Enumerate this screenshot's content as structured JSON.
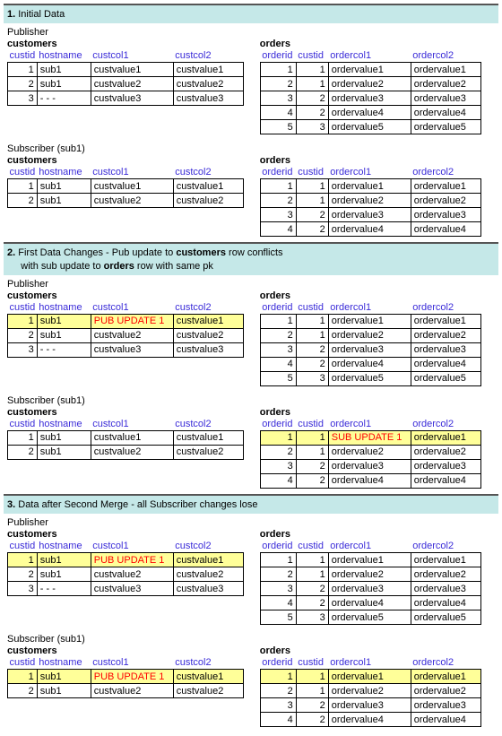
{
  "colors": {
    "header_bg": "#c5e8e8",
    "header_border": "#555555",
    "column_header_text": "#3a2bd8",
    "highlight_bg": "#ffff99",
    "update_text": "#ff0000",
    "cell_border": "#000000"
  },
  "layout": {
    "customers_col_widths": [
      28,
      60,
      92,
      78
    ],
    "orders_col_widths": [
      40,
      36,
      92,
      78
    ]
  },
  "sections": [
    {
      "num": "1.",
      "title": "Initial Data",
      "subtitle": "",
      "blocks": [
        {
          "role": "Publisher",
          "customers": {
            "title": "customers",
            "columns": [
              "custid",
              "hostname",
              "custcol1",
              "custcol2"
            ],
            "rows": [
              {
                "cells": [
                  "1",
                  "sub1",
                  "custvalue1",
                  "custvalue1"
                ]
              },
              {
                "cells": [
                  "2",
                  "sub1",
                  "custvalue2",
                  "custvalue2"
                ]
              },
              {
                "cells": [
                  "3",
                  "- - -",
                  "custvalue3",
                  "custvalue3"
                ]
              }
            ]
          },
          "orders": {
            "title": "orders",
            "columns": [
              "orderid",
              "custid",
              "ordercol1",
              "ordercol2"
            ],
            "rows": [
              {
                "cells": [
                  "1",
                  "1",
                  "ordervalue1",
                  "ordervalue1"
                ]
              },
              {
                "cells": [
                  "2",
                  "1",
                  "ordervalue2",
                  "ordervalue2"
                ]
              },
              {
                "cells": [
                  "3",
                  "2",
                  "ordervalue3",
                  "ordervalue3"
                ]
              },
              {
                "cells": [
                  "4",
                  "2",
                  "ordervalue4",
                  "ordervalue4"
                ]
              },
              {
                "cells": [
                  "5",
                  "3",
                  "ordervalue5",
                  "ordervalue5"
                ]
              }
            ]
          }
        },
        {
          "role": "Subscriber (sub1)",
          "customers": {
            "title": "customers",
            "columns": [
              "custid",
              "hostname",
              "custcol1",
              "custcol2"
            ],
            "rows": [
              {
                "cells": [
                  "1",
                  "sub1",
                  "custvalue1",
                  "custvalue1"
                ]
              },
              {
                "cells": [
                  "2",
                  "sub1",
                  "custvalue2",
                  "custvalue2"
                ]
              }
            ]
          },
          "orders": {
            "title": "orders",
            "columns": [
              "orderid",
              "custid",
              "ordercol1",
              "ordercol2"
            ],
            "rows": [
              {
                "cells": [
                  "1",
                  "1",
                  "ordervalue1",
                  "ordervalue1"
                ]
              },
              {
                "cells": [
                  "2",
                  "1",
                  "ordervalue2",
                  "ordervalue2"
                ]
              },
              {
                "cells": [
                  "3",
                  "2",
                  "ordervalue3",
                  "ordervalue3"
                ]
              },
              {
                "cells": [
                  "4",
                  "2",
                  "ordervalue4",
                  "ordervalue4"
                ]
              }
            ]
          }
        }
      ]
    },
    {
      "num": "2.",
      "title": "First Data Changes - Pub update to <b>customers</b> row conflicts",
      "subtitle": "with sub update to <b>orders</b> row with same pk",
      "blocks": [
        {
          "role": "Publisher",
          "customers": {
            "title": "customers",
            "columns": [
              "custid",
              "hostname",
              "custcol1",
              "custcol2"
            ],
            "rows": [
              {
                "cells": [
                  "1",
                  "sub1",
                  "PUB UPDATE 1",
                  "custvalue1"
                ],
                "highlight": true,
                "update_col": 2
              },
              {
                "cells": [
                  "2",
                  "sub1",
                  "custvalue2",
                  "custvalue2"
                ]
              },
              {
                "cells": [
                  "3",
                  "- - -",
                  "custvalue3",
                  "custvalue3"
                ]
              }
            ]
          },
          "orders": {
            "title": "orders",
            "columns": [
              "orderid",
              "custid",
              "ordercol1",
              "ordercol2"
            ],
            "rows": [
              {
                "cells": [
                  "1",
                  "1",
                  "ordervalue1",
                  "ordervalue1"
                ]
              },
              {
                "cells": [
                  "2",
                  "1",
                  "ordervalue2",
                  "ordervalue2"
                ]
              },
              {
                "cells": [
                  "3",
                  "2",
                  "ordervalue3",
                  "ordervalue3"
                ]
              },
              {
                "cells": [
                  "4",
                  "2",
                  "ordervalue4",
                  "ordervalue4"
                ]
              },
              {
                "cells": [
                  "5",
                  "3",
                  "ordervalue5",
                  "ordervalue5"
                ]
              }
            ]
          }
        },
        {
          "role": "Subscriber (sub1)",
          "customers": {
            "title": "customers",
            "columns": [
              "custid",
              "hostname",
              "custcol1",
              "custcol2"
            ],
            "rows": [
              {
                "cells": [
                  "1",
                  "sub1",
                  "custvalue1",
                  "custvalue1"
                ]
              },
              {
                "cells": [
                  "2",
                  "sub1",
                  "custvalue2",
                  "custvalue2"
                ]
              }
            ]
          },
          "orders": {
            "title": "orders",
            "columns": [
              "orderid",
              "custid",
              "ordercol1",
              "ordercol2"
            ],
            "rows": [
              {
                "cells": [
                  "1",
                  "1",
                  "SUB UPDATE 1",
                  "ordervalue1"
                ],
                "highlight": true,
                "update_col": 2
              },
              {
                "cells": [
                  "2",
                  "1",
                  "ordervalue2",
                  "ordervalue2"
                ]
              },
              {
                "cells": [
                  "3",
                  "2",
                  "ordervalue3",
                  "ordervalue3"
                ]
              },
              {
                "cells": [
                  "4",
                  "2",
                  "ordervalue4",
                  "ordervalue4"
                ]
              }
            ]
          }
        }
      ]
    },
    {
      "num": "3.",
      "title": "Data after Second Merge - all Subscriber changes lose",
      "subtitle": "",
      "blocks": [
        {
          "role": "Publisher",
          "customers": {
            "title": "customers",
            "columns": [
              "custid",
              "hostname",
              "custcol1",
              "custcol2"
            ],
            "rows": [
              {
                "cells": [
                  "1",
                  "sub1",
                  "PUB UPDATE 1",
                  "custvalue1"
                ],
                "highlight": true,
                "update_col": 2
              },
              {
                "cells": [
                  "2",
                  "sub1",
                  "custvalue2",
                  "custvalue2"
                ]
              },
              {
                "cells": [
                  "3",
                  "- - -",
                  "custvalue3",
                  "custvalue3"
                ]
              }
            ]
          },
          "orders": {
            "title": "orders",
            "columns": [
              "orderid",
              "custid",
              "ordercol1",
              "ordercol2"
            ],
            "rows": [
              {
                "cells": [
                  "1",
                  "1",
                  "ordervalue1",
                  "ordervalue1"
                ]
              },
              {
                "cells": [
                  "2",
                  "1",
                  "ordervalue2",
                  "ordervalue2"
                ]
              },
              {
                "cells": [
                  "3",
                  "2",
                  "ordervalue3",
                  "ordervalue3"
                ]
              },
              {
                "cells": [
                  "4",
                  "2",
                  "ordervalue4",
                  "ordervalue4"
                ]
              },
              {
                "cells": [
                  "5",
                  "3",
                  "ordervalue5",
                  "ordervalue5"
                ]
              }
            ]
          }
        },
        {
          "role": "Subscriber (sub1)",
          "customers": {
            "title": "customers",
            "columns": [
              "custid",
              "hostname",
              "custcol1",
              "custcol2"
            ],
            "rows": [
              {
                "cells": [
                  "1",
                  "sub1",
                  "PUB UPDATE 1",
                  "custvalue1"
                ],
                "highlight": true,
                "update_col": 2
              },
              {
                "cells": [
                  "2",
                  "sub1",
                  "custvalue2",
                  "custvalue2"
                ]
              }
            ]
          },
          "orders": {
            "title": "orders",
            "columns": [
              "orderid",
              "custid",
              "ordercol1",
              "ordercol2"
            ],
            "rows": [
              {
                "cells": [
                  "1",
                  "1",
                  "ordervalue1",
                  "ordervalue1"
                ],
                "highlight": true
              },
              {
                "cells": [
                  "2",
                  "1",
                  "ordervalue2",
                  "ordervalue2"
                ]
              },
              {
                "cells": [
                  "3",
                  "2",
                  "ordervalue3",
                  "ordervalue3"
                ]
              },
              {
                "cells": [
                  "4",
                  "2",
                  "ordervalue4",
                  "ordervalue4"
                ]
              }
            ]
          }
        }
      ]
    }
  ]
}
